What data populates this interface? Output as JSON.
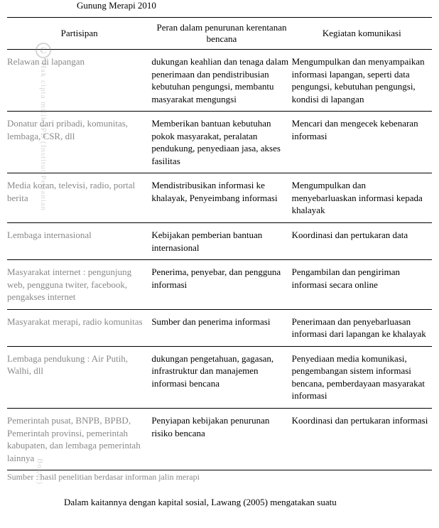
{
  "title_fragment": "Gunung Merapi 2010",
  "headers": {
    "col1": "Partisipan",
    "col2": "Peran dalam penurunan kerentanan bencana",
    "col3": "Kegiatan komunikasi"
  },
  "rows": [
    {
      "partisipan": "Relawan di lapangan",
      "peran": "dukungan keahlian dan tenaga dalam penerimaan dan pendistribusian kebutuhan pengungsi, membantu masyarakat mengungsi",
      "kegiatan": "Mengumpulkan dan menyampaikan informasi lapangan, seperti data pengungsi, kebutuhan pengungsi, kondisi di lapangan"
    },
    {
      "partisipan": "Donatur dari pribadi, komunitas, lembaga, CSR, dll",
      "peran": "Memberikan bantuan kebutuhan pokok masyarakat, peralatan pendukung, penyediaan jasa, akses fasilitas",
      "kegiatan": "Mencari dan mengecek kebenaran informasi"
    },
    {
      "partisipan": "Media koran, televisi, radio, portal berita",
      "peran": "Mendistribusikan informasi ke khalayak, Penyeimbang informasi",
      "kegiatan": "Mengumpulkan dan menyebarluaskan informasi kepada khalayak"
    },
    {
      "partisipan": "Lembaga internasional",
      "peran": "Kebijakan pemberian bantuan internasional",
      "kegiatan": "Koordinasi dan pertukaran data"
    },
    {
      "partisipan": "Masyarakat internet : pengunjung web, pengguna twiter, facebook, pengakses internet",
      "peran": "Penerima, penyebar, dan pengguna informasi",
      "kegiatan": "Pengambilan dan pengiriman informasi secara online"
    },
    {
      "partisipan": "Masyarakat merapi, radio komunitas",
      "peran": "Sumber dan penerima informasi",
      "kegiatan": "Penerimaan dan penyebarluasan informasi dari lapangan ke khalayak"
    },
    {
      "partisipan": "Lembaga pendukung : Air Putih, Walhi, dll",
      "peran": "dukungan pengetahuan, gagasan, infrastruktur dan manajemen informasi bencana",
      "kegiatan": "Penyediaan media komunikasi, pengembangan sistem informasi bencana, pemberdayaan masyarakat informasi"
    },
    {
      "partisipan": "Pemerintah pusat, BNPB, BPBD,  Pemerintah provinsi, pemerintah kabupaten, dan lembaga pemerintah lainnya",
      "peran": "Penyiapan kebijakan penurunan risiko bencana",
      "kegiatan": "Koordinasi dan pertukaran informasi"
    }
  ],
  "source": "Sumber : hasil penelitian berdasar informan jalin merapi",
  "body_text": "Dalam kaitannya dengan kapital sosial, Lawang (2005) mengatakan suatu",
  "watermark": {
    "copyright": "C",
    "text1": "Hak cipta milik IPB (Institut Pertanian",
    "text2": "Bogor)"
  }
}
